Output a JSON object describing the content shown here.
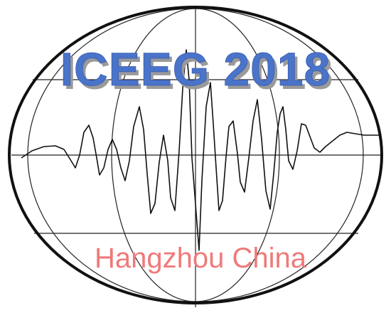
{
  "logo": {
    "title": "ICEEG 2018",
    "subtitle": "Hangzhou China",
    "colors": {
      "outline": "#111111",
      "grid": "#222222",
      "wave": "#111111",
      "title_fill": "#4a74c9",
      "title_shadow": "#9a9a9a",
      "subtitle_fill": "#ef7a7a"
    }
  }
}
